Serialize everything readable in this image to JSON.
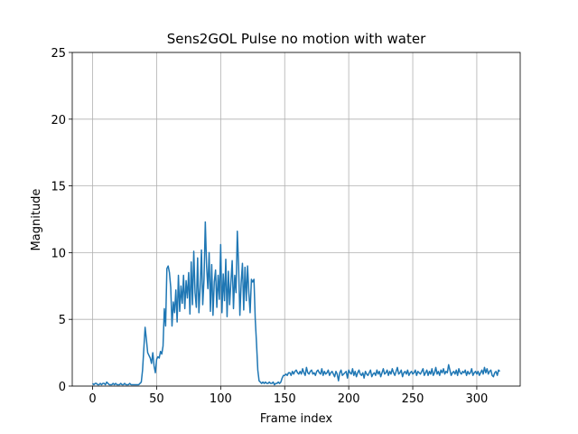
{
  "chart_data": {
    "type": "line",
    "title": "Sens2GOL Pulse no motion with water",
    "x_label": "Frame index",
    "y_label": "Magnitude",
    "color": "#1f77b4",
    "grid": true,
    "xlim": [
      -15.9,
      333.9
    ],
    "ylim": [
      0,
      25
    ],
    "xticks": [
      0,
      50,
      100,
      150,
      200,
      250,
      300
    ],
    "yticks": [
      0,
      5,
      10,
      15,
      20,
      25
    ],
    "x": [
      0,
      1,
      2,
      3,
      4,
      5,
      6,
      7,
      8,
      9,
      10,
      11,
      12,
      13,
      14,
      15,
      16,
      17,
      18,
      19,
      20,
      21,
      22,
      23,
      24,
      25,
      26,
      27,
      28,
      29,
      30,
      31,
      32,
      33,
      34,
      35,
      36,
      37,
      38,
      39,
      40,
      41,
      42,
      43,
      44,
      45,
      46,
      47,
      48,
      49,
      50,
      51,
      52,
      53,
      54,
      55,
      56,
      57,
      58,
      59,
      60,
      61,
      62,
      63,
      64,
      65,
      66,
      67,
      68,
      69,
      70,
      71,
      72,
      73,
      74,
      75,
      76,
      77,
      78,
      79,
      80,
      81,
      82,
      83,
      84,
      85,
      86,
      87,
      88,
      89,
      90,
      91,
      92,
      93,
      94,
      95,
      96,
      97,
      98,
      99,
      100,
      101,
      102,
      103,
      104,
      105,
      106,
      107,
      108,
      109,
      110,
      111,
      112,
      113,
      114,
      115,
      116,
      117,
      118,
      119,
      120,
      121,
      122,
      123,
      124,
      125,
      126,
      127,
      128,
      129,
      130,
      131,
      132,
      133,
      134,
      135,
      136,
      137,
      138,
      139,
      140,
      141,
      142,
      143,
      144,
      145,
      146,
      147,
      148,
      149,
      150,
      151,
      152,
      153,
      154,
      155,
      156,
      157,
      158,
      159,
      160,
      161,
      162,
      163,
      164,
      165,
      166,
      167,
      168,
      169,
      170,
      171,
      172,
      173,
      174,
      175,
      176,
      177,
      178,
      179,
      180,
      181,
      182,
      183,
      184,
      185,
      186,
      187,
      188,
      189,
      190,
      191,
      192,
      193,
      194,
      195,
      196,
      197,
      198,
      199,
      200,
      201,
      202,
      203,
      204,
      205,
      206,
      207,
      208,
      209,
      210,
      211,
      212,
      213,
      214,
      215,
      216,
      217,
      218,
      219,
      220,
      221,
      222,
      223,
      224,
      225,
      226,
      227,
      228,
      229,
      230,
      231,
      232,
      233,
      234,
      235,
      236,
      237,
      238,
      239,
      240,
      241,
      242,
      243,
      244,
      245,
      246,
      247,
      248,
      249,
      250,
      251,
      252,
      253,
      254,
      255,
      256,
      257,
      258,
      259,
      260,
      261,
      262,
      263,
      264,
      265,
      266,
      267,
      268,
      269,
      270,
      271,
      272,
      273,
      274,
      275,
      276,
      277,
      278,
      279,
      280,
      281,
      282,
      283,
      284,
      285,
      286,
      287,
      288,
      289,
      290,
      291,
      292,
      293,
      294,
      295,
      296,
      297,
      298,
      299,
      300,
      301,
      302,
      303,
      304,
      305,
      306,
      307,
      308,
      309,
      310,
      311,
      312,
      313,
      314,
      315,
      316,
      317,
      318
    ],
    "values": [
      0.2,
      0.1,
      0.2,
      0.2,
      0.1,
      0.1,
      0.2,
      0.1,
      0.2,
      0.2,
      0.1,
      0.3,
      0.2,
      0.1,
      0.1,
      0.1,
      0.2,
      0.1,
      0.2,
      0.1,
      0.1,
      0.1,
      0.2,
      0.1,
      0.1,
      0.2,
      0.1,
      0.1,
      0.1,
      0.2,
      0.1,
      0.1,
      0.1,
      0.1,
      0.1,
      0.1,
      0.1,
      0.2,
      0.3,
      1.2,
      2.8,
      4.4,
      3.5,
      2.5,
      2.3,
      2.1,
      1.7,
      2.5,
      1.5,
      1.0,
      2.0,
      2.2,
      2.1,
      2.6,
      2.4,
      3.0,
      5.8,
      4.5,
      8.8,
      9.0,
      8.5,
      7.4,
      4.5,
      6.3,
      5.5,
      7.2,
      4.8,
      8.3,
      5.6,
      7.5,
      6.2,
      8.3,
      5.8,
      7.9,
      6.6,
      8.5,
      5.4,
      9.3,
      6.1,
      10.1,
      7.0,
      5.9,
      9.6,
      5.5,
      7.4,
      10.2,
      6.1,
      8.0,
      12.3,
      9.0,
      7.3,
      10.0,
      5.6,
      9.1,
      5.3,
      7.8,
      8.7,
      5.9,
      8.3,
      6.5,
      10.6,
      5.5,
      8.4,
      6.4,
      9.5,
      5.2,
      8.6,
      6.1,
      7.8,
      9.4,
      5.8,
      8.3,
      7.0,
      11.6,
      9.0,
      5.3,
      7.7,
      9.2,
      5.7,
      8.9,
      6.4,
      9.0,
      7.0,
      5.5,
      8.0,
      7.8,
      8.0,
      5.0,
      3.2,
      1.2,
      0.4,
      0.3,
      0.2,
      0.3,
      0.2,
      0.3,
      0.2,
      0.2,
      0.3,
      0.2,
      0.2,
      0.3,
      0.1,
      0.2,
      0.2,
      0.3,
      0.2,
      0.3,
      0.6,
      0.8,
      0.8,
      0.9,
      0.8,
      1.0,
      1.0,
      0.8,
      1.1,
      0.9,
      1.1,
      1.2,
      1.0,
      0.9,
      1.1,
      0.9,
      1.3,
      1.0,
      0.8,
      1.4,
      1.0,
      0.9,
      1.1,
      1.2,
      0.9,
      1.0,
      0.8,
      1.1,
      1.2,
      1.0,
      0.9,
      1.3,
      0.8,
      1.1,
      0.9,
      1.0,
      1.2,
      0.8,
      1.0,
      1.1,
      0.9,
      0.7,
      1.1,
      0.9,
      0.4,
      1.0,
      1.2,
      0.8,
      0.9,
      1.0,
      1.1,
      0.6,
      1.2,
      1.0,
      0.9,
      1.3,
      0.8,
      1.1,
      0.7,
      1.0,
      1.2,
      0.9,
      0.8,
      1.0,
      0.6,
      1.1,
      0.9,
      0.8,
      1.0,
      1.2,
      0.7,
      0.9,
      1.0,
      0.8,
      1.2,
      0.9,
      1.1,
      0.7,
      1.0,
      1.3,
      0.9,
      1.0,
      1.2,
      0.8,
      1.1,
      0.9,
      1.3,
      1.0,
      0.8,
      1.1,
      1.4,
      0.9,
      1.0,
      1.2,
      0.7,
      1.0,
      1.1,
      0.9,
      1.2,
      0.8,
      1.0,
      1.1,
      0.9,
      1.0,
      1.2,
      0.8,
      1.1,
      1.0,
      0.9,
      1.1,
      1.3,
      0.8,
      1.0,
      1.2,
      0.8,
      1.1,
      0.9,
      1.3,
      0.8,
      1.0,
      1.4,
      0.9,
      1.1,
      0.8,
      1.2,
      1.0,
      1.3,
      0.9,
      1.1,
      1.0,
      1.6,
      1.2,
      0.8,
      1.0,
      1.1,
      0.9,
      1.2,
      0.8,
      1.3,
      1.0,
      0.9,
      1.1,
      1.0,
      1.2,
      0.8,
      1.1,
      0.9,
      1.0,
      1.3,
      0.8,
      1.0,
      1.1,
      0.9,
      1.1,
      0.8,
      1.0,
      1.2,
      0.9,
      1.4,
      1.0,
      1.3,
      0.9,
      1.1,
      1.2,
      0.8,
      0.7,
      1.0,
      1.1,
      0.8,
      1.2,
      1.1
    ]
  }
}
